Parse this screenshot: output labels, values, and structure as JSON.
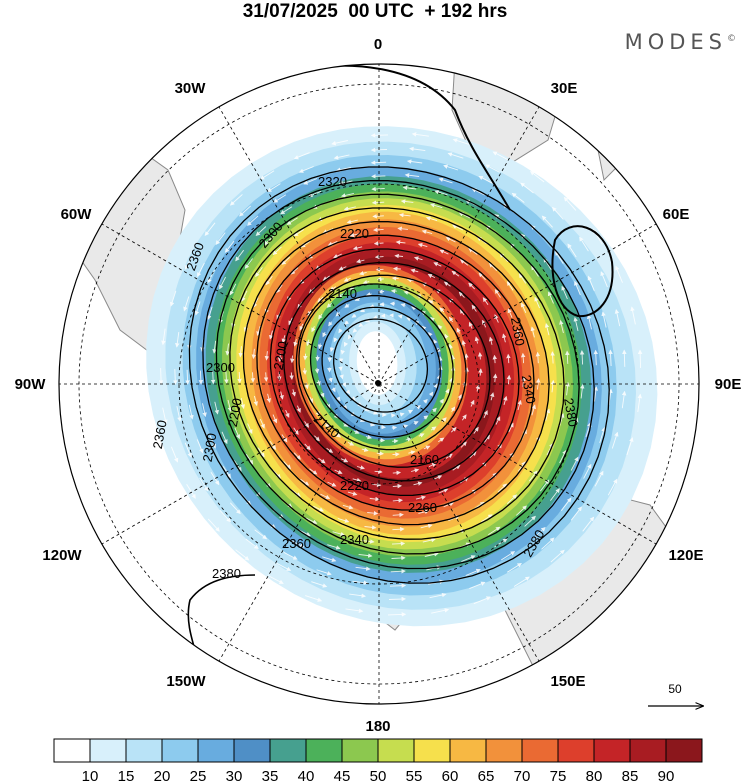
{
  "header": {
    "title": "31/07/2025  00 UTC  + 192 hrs",
    "brand": "MODES",
    "brand_mark": "©"
  },
  "longitude_labels": [
    "0",
    "30E",
    "60E",
    "90E",
    "120E",
    "150E",
    "180",
    "150W",
    "120W",
    "90W",
    "60W",
    "30W"
  ],
  "contour_labels": [
    "2140",
    "2160",
    "2200",
    "2220",
    "2260",
    "2300",
    "2320",
    "2340",
    "2360",
    "2380"
  ],
  "reference_vector": {
    "label": "50"
  },
  "colorbar": {
    "ticks": [
      "10",
      "15",
      "20",
      "25",
      "30",
      "35",
      "40",
      "45",
      "50",
      "55",
      "60",
      "65",
      "70",
      "75",
      "80",
      "85",
      "90"
    ],
    "colors": [
      "#ffffff",
      "#d8f0fb",
      "#b9e3f7",
      "#8dcbee",
      "#68acdf",
      "#4f8fc6",
      "#46a08f",
      "#4cb15a",
      "#8cc84f",
      "#c6dd4f",
      "#f6e04c",
      "#f7b843",
      "#f2913b",
      "#ea6a33",
      "#dd3f2c",
      "#c42427",
      "#a81c22",
      "#8b171c"
    ]
  },
  "colors": {
    "land": "#e9e9e9",
    "coast": "#8a8a8a",
    "contour": "#000000",
    "streamline": "#ffffff"
  }
}
